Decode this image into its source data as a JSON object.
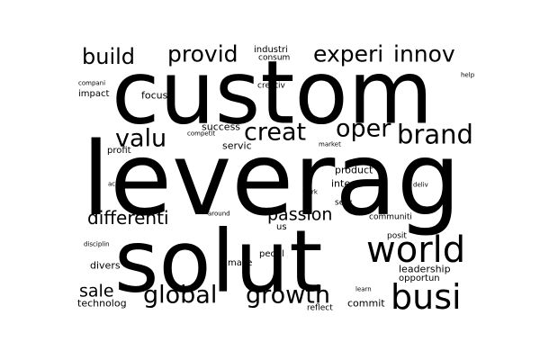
{
  "background": "#ffffff",
  "text_color": "#000000",
  "words": [
    "custom",
    "leverag",
    "solut",
    "busi",
    "world",
    "brand",
    "oper",
    "creat",
    "valu",
    "growth",
    "global",
    "innov",
    "experi",
    "provid",
    "build",
    "differenti",
    "passion",
    "sale",
    "industri",
    "consum",
    "creativ",
    "help",
    "compani",
    "impact",
    "focus",
    "competit",
    "success",
    "servic",
    "market",
    "profit",
    "product",
    "integr",
    "achiev",
    "work",
    "deliv",
    "serv",
    "around",
    "us",
    "communiti",
    "posit",
    "disciplin",
    "divers",
    "make",
    "peopl",
    "leadership",
    "opportun",
    "learn",
    "technolog",
    "commit",
    "reflect"
  ]
}
